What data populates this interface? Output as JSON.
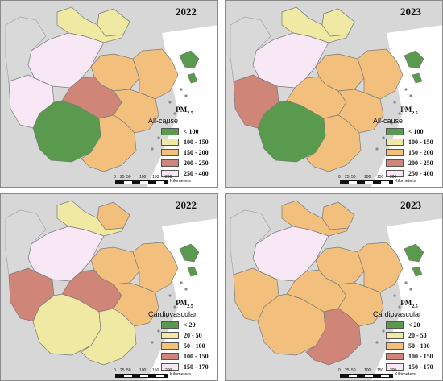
{
  "panels": [
    {
      "year": "2022",
      "pm_main": "PM",
      "pm_sub": "2.5",
      "cause": "All-cause",
      "legend": [
        {
          "label": "< 100",
          "color": "#5a9a4e"
        },
        {
          "label": "100 - 150",
          "color": "#efe9a4"
        },
        {
          "label": "150 - 200",
          "color": "#f2c07c"
        },
        {
          "label": "200 - 250",
          "color": "#cf8577"
        },
        {
          "label": "250 - 400",
          "color": "#f8e7f4"
        }
      ],
      "regions": {
        "hz": 4,
        "hu": 1,
        "jx": 1,
        "nb": 2,
        "zs": 0,
        "sx": 2,
        "jh": 3,
        "tz": 2,
        "qz": 0,
        "lsh": 4,
        "wz": 2
      }
    },
    {
      "year": "2023",
      "pm_main": "PM",
      "pm_sub": "2.5",
      "cause": "All-cause",
      "legend": [
        {
          "label": "< 100",
          "color": "#5a9a4e"
        },
        {
          "label": "100 - 150",
          "color": "#efe9a4"
        },
        {
          "label": "150 - 200",
          "color": "#f2c07c"
        },
        {
          "label": "200 - 250",
          "color": "#cf8577"
        },
        {
          "label": "250 - 400",
          "color": "#f8e7f4"
        }
      ],
      "regions": {
        "hz": 4,
        "hu": 1,
        "jx": 1,
        "nb": 2,
        "zs": 0,
        "sx": 2,
        "jh": 2,
        "tz": 2,
        "qz": 0,
        "lsh": 3,
        "wz": 2
      }
    },
    {
      "year": "2022",
      "pm_main": "PM",
      "pm_sub": "2.5",
      "cause": "Cardiovascular",
      "legend": [
        {
          "label": "< 20",
          "color": "#5a9a4e"
        },
        {
          "label": "20 - 50",
          "color": "#efe9a4"
        },
        {
          "label": "50 - 100",
          "color": "#f2c07c"
        },
        {
          "label": "100 - 150",
          "color": "#cf8577"
        },
        {
          "label": "150 - 170",
          "color": "#f8e7f4"
        }
      ],
      "regions": {
        "hz": 4,
        "hu": 1,
        "jx": 2,
        "nb": 2,
        "zs": 0,
        "sx": 2,
        "jh": 3,
        "tz": 2,
        "qz": 1,
        "lsh": 3,
        "wz": 1
      }
    },
    {
      "year": "2023",
      "pm_main": "PM",
      "pm_sub": "2.5",
      "cause": "Cardiovascular",
      "legend": [
        {
          "label": "< 20",
          "color": "#5a9a4e"
        },
        {
          "label": "20 - 50",
          "color": "#efe9a4"
        },
        {
          "label": "50 - 100",
          "color": "#f2c07c"
        },
        {
          "label": "100 - 150",
          "color": "#cf8577"
        },
        {
          "label": "150 - 170",
          "color": "#f8e7f4"
        }
      ],
      "regions": {
        "hz": 4,
        "hu": 2,
        "jx": 2,
        "nb": 2,
        "zs": 0,
        "sx": 2,
        "jh": 2,
        "tz": 2,
        "qz": 2,
        "lsh": 2,
        "wz": 3
      }
    }
  ],
  "scale": {
    "ticks": [
      "0",
      "25",
      "50",
      "100",
      "150",
      "200"
    ],
    "unit": "Kilometers"
  }
}
